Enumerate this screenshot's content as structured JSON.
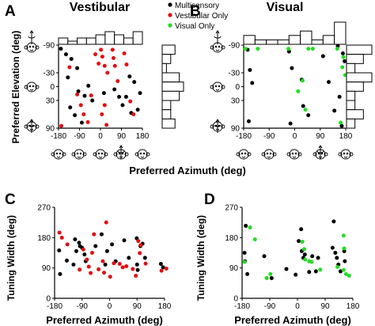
{
  "figure": {
    "panel_labels": [
      "A",
      "B",
      "C",
      "D"
    ],
    "titles": {
      "vestibular": "Vestibular",
      "visual": "Visual"
    },
    "legend": [
      {
        "label": "Multisensory",
        "color": "#000000"
      },
      {
        "label": "Vestibular Only",
        "color": "#e01010"
      },
      {
        "label": "Visual Only",
        "color": "#22dd22"
      }
    ],
    "colors": {
      "multisensory": "#000000",
      "vestibular_only": "#e01010",
      "visual_only": "#22dd22"
    },
    "icons": [
      "monkey-head-icon",
      "rotation-arrow-icon"
    ]
  },
  "chart_data": [
    {
      "id": "A",
      "type": "scatter",
      "title": "Vestibular",
      "xlabel": "Preferred Azimuth (deg)",
      "ylabel": "Preferred Elevation (deg)",
      "xlim": [
        -180,
        180
      ],
      "ylim": [
        -90,
        90
      ],
      "y_inverted": true,
      "xticks": [
        -180,
        -90,
        0,
        90,
        180
      ],
      "yticks": [
        -90,
        -30,
        0,
        30,
        90
      ],
      "series": [
        {
          "name": "Multisensory",
          "color": "#000000",
          "points": [
            [
              -170,
              -82
            ],
            [
              -148,
              -70
            ],
            [
              -125,
              -60
            ],
            [
              -100,
              -40
            ],
            [
              -52,
              -2
            ],
            [
              -140,
              -20
            ],
            [
              -95,
              10
            ],
            [
              -68,
              20
            ],
            [
              -35,
              30
            ],
            [
              -130,
              45
            ],
            [
              -110,
              62
            ],
            [
              -80,
              78
            ],
            [
              15,
              14
            ],
            [
              60,
              6
            ],
            [
              80,
              22
            ],
            [
              95,
              40
            ],
            [
              110,
              22
            ],
            [
              125,
              -22
            ],
            [
              145,
              -10
            ],
            [
              170,
              14
            ],
            [
              160,
              50
            ],
            [
              132,
              57
            ]
          ]
        },
        {
          "name": "Vestibular Only",
          "color": "#e01010",
          "points": [
            [
              -168,
              85
            ],
            [
              -133,
              -42
            ],
            [
              -100,
              17
            ],
            [
              -84,
              40
            ],
            [
              -72,
              60
            ],
            [
              -54,
              77
            ],
            [
              -40,
              19
            ],
            [
              -22,
              -70
            ],
            [
              -8,
              -50
            ],
            [
              2,
              -80
            ],
            [
              8,
              -65
            ],
            [
              18,
              -45
            ],
            [
              30,
              -30
            ],
            [
              52,
              -80
            ],
            [
              56,
              -62
            ],
            [
              62,
              -45
            ],
            [
              74,
              -12
            ],
            [
              18,
              40
            ],
            [
              6,
              60
            ],
            [
              26,
              83
            ],
            [
              102,
              -72
            ],
            [
              112,
              -48
            ],
            [
              128,
              32
            ],
            [
              142,
              60
            ]
          ]
        }
      ],
      "hist_x": [
        2,
        1,
        2,
        2,
        3,
        4,
        3,
        2,
        4
      ],
      "hist_y": [
        3,
        2,
        1,
        4,
        5,
        4,
        2,
        2,
        3
      ]
    },
    {
      "id": "B",
      "type": "scatter",
      "title": "Visual",
      "xlabel": "Preferred Azimuth (deg)",
      "ylabel": "",
      "xlim": [
        -180,
        180
      ],
      "ylim": [
        -90,
        90
      ],
      "y_inverted": true,
      "xticks": [
        -180,
        -90,
        0,
        90,
        180
      ],
      "yticks": [
        -90,
        -30,
        0,
        30,
        90
      ],
      "series": [
        {
          "name": "Multisensory",
          "color": "#000000",
          "points": [
            [
              -166,
              -80
            ],
            [
              -158,
              -36
            ],
            [
              -150,
              -8
            ],
            [
              -162,
              75
            ],
            [
              -20,
              -76
            ],
            [
              -10,
              -40
            ],
            [
              25,
              -15
            ],
            [
              30,
              42
            ],
            [
              -15,
              80
            ],
            [
              48,
              62
            ],
            [
              100,
              -66
            ],
            [
              120,
              -10
            ],
            [
              140,
              52
            ],
            [
              158,
              22
            ],
            [
              166,
              85
            ],
            [
              170,
              -72
            ],
            [
              176,
              -55
            ],
            [
              152,
              -88
            ]
          ]
        },
        {
          "name": "Visual Only",
          "color": "#22dd22",
          "points": [
            [
              -174,
              -82
            ],
            [
              -130,
              -82
            ],
            [
              -22,
              -82
            ],
            [
              48,
              -82
            ],
            [
              64,
              -82
            ],
            [
              150,
              -82
            ],
            [
              172,
              -64
            ],
            [
              12,
              10
            ],
            [
              28,
              -13
            ],
            [
              38,
              50
            ],
            [
              168,
              -42
            ],
            [
              178,
              -25
            ],
            [
              162,
              78
            ]
          ]
        }
      ],
      "hist_x": [
        2,
        1,
        1,
        1,
        2,
        3,
        1,
        2,
        5
      ],
      "hist_y": [
        3,
        2,
        1,
        3,
        2,
        1,
        1,
        2,
        1
      ]
    },
    {
      "id": "C",
      "type": "scatter",
      "xlabel": "Preferred Azimuth (deg)",
      "ylabel": "Tuning Width (deg)",
      "xlim": [
        -180,
        180
      ],
      "ylim": [
        0,
        270
      ],
      "xticks": [
        -180,
        -90,
        0,
        90,
        180
      ],
      "yticks": [
        0,
        90,
        180,
        270
      ],
      "series": [
        {
          "name": "Multisensory",
          "color": "#000000",
          "points": [
            [
              -165,
              142
            ],
            [
              -162,
              72
            ],
            [
              -140,
              112
            ],
            [
              -118,
              100
            ],
            [
              -113,
              175
            ],
            [
              -109,
              140
            ],
            [
              -100,
              165
            ],
            [
              -97,
              155
            ],
            [
              -90,
              150
            ],
            [
              -82,
              130
            ],
            [
              -78,
              110
            ],
            [
              -46,
              155
            ],
            [
              -26,
              190
            ],
            [
              -14,
              100
            ],
            [
              -8,
              140
            ],
            [
              8,
              160
            ],
            [
              20,
              110
            ],
            [
              48,
              172
            ],
            [
              63,
              120
            ],
            [
              89,
              178
            ],
            [
              90,
              100
            ],
            [
              92,
              84
            ],
            [
              101,
              155
            ],
            [
              108,
              162
            ],
            [
              116,
              120
            ],
            [
              168,
              102
            ],
            [
              175,
              92
            ]
          ]
        },
        {
          "name": "Vestibular Only",
          "color": "#e01010",
          "points": [
            [
              -164,
              195
            ],
            [
              -156,
              180
            ],
            [
              -138,
              160
            ],
            [
              -98,
              85
            ],
            [
              -86,
              145
            ],
            [
              -74,
              115
            ],
            [
              -68,
              94
            ],
            [
              -62,
              75
            ],
            [
              -57,
              135
            ],
            [
              -51,
              190
            ],
            [
              -36,
              86
            ],
            [
              -22,
              110
            ],
            [
              -18,
              76
            ],
            [
              -11,
              225
            ],
            [
              2,
              64
            ],
            [
              14,
              104
            ],
            [
              33,
              102
            ],
            [
              43,
              92
            ],
            [
              55,
              95
            ],
            [
              76,
              87
            ],
            [
              86,
              67
            ],
            [
              94,
              170
            ],
            [
              99,
              134
            ],
            [
              102,
              158
            ],
            [
              118,
              103
            ],
            [
              170,
              82
            ],
            [
              186,
              88
            ]
          ]
        }
      ]
    },
    {
      "id": "D",
      "type": "scatter",
      "xlabel": "Preferred Azimuth (deg)",
      "ylabel": "Tuning Width (deg)",
      "xlim": [
        -180,
        180
      ],
      "ylim": [
        0,
        270
      ],
      "xticks": [
        -180,
        -90,
        0,
        90,
        180
      ],
      "yticks": [
        0,
        90,
        180,
        270
      ],
      "series": [
        {
          "name": "Multisensory",
          "color": "#000000",
          "points": [
            [
              -168,
              215
            ],
            [
              -172,
              135
            ],
            [
              -171,
              110
            ],
            [
              -163,
              72
            ],
            [
              -108,
              125
            ],
            [
              -84,
              60
            ],
            [
              -36,
              87
            ],
            [
              12,
              205
            ],
            [
              4,
              170
            ],
            [
              -6,
              70
            ],
            [
              19,
              120
            ],
            [
              14,
              140
            ],
            [
              24,
              130
            ],
            [
              38,
              78
            ],
            [
              48,
              125
            ],
            [
              67,
              120
            ],
            [
              60,
              80
            ],
            [
              118,
              228
            ],
            [
              114,
              150
            ],
            [
              123,
              135
            ],
            [
              128,
              120
            ],
            [
              133,
              100
            ],
            [
              140,
              80
            ],
            [
              152,
              140
            ],
            [
              154,
              110
            ]
          ]
        },
        {
          "name": "Visual Only",
          "color": "#22dd22",
          "points": [
            [
              -154,
              210
            ],
            [
              -138,
              175
            ],
            [
              -172,
              108
            ],
            [
              -100,
              60
            ],
            [
              -88,
              72
            ],
            [
              16,
              168
            ],
            [
              22,
              146
            ],
            [
              25,
              115
            ],
            [
              38,
              110
            ],
            [
              46,
              108
            ],
            [
              74,
              85
            ],
            [
              130,
              93
            ],
            [
              150,
              186
            ],
            [
              150,
              84
            ],
            [
              158,
              72
            ],
            [
              168,
              67
            ],
            [
              152,
              148
            ]
          ]
        }
      ]
    }
  ]
}
